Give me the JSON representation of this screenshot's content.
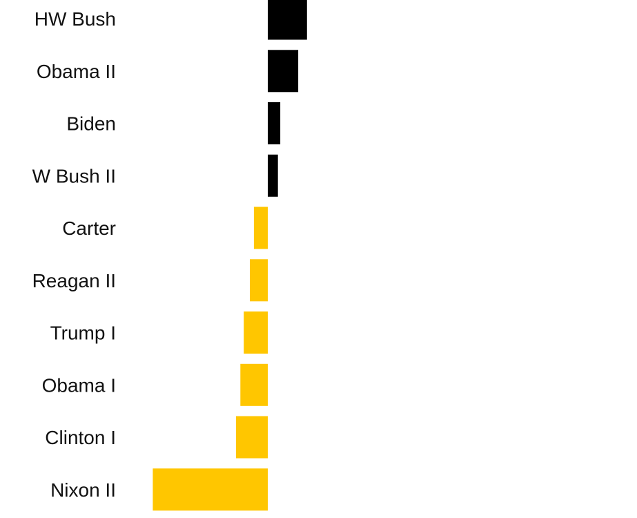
{
  "chart_data": {
    "type": "bar",
    "orientation": "horizontal",
    "title": "",
    "xlabel": "",
    "ylabel": "",
    "categories": [
      "HW Bush",
      "Obama II",
      "Biden",
      "W Bush II",
      "Carter",
      "Reagan II",
      "Trump I",
      "Obama I",
      "Clinton I",
      "Nixon II"
    ],
    "values": [
      11.6,
      9.0,
      3.7,
      3.0,
      -4.1,
      -5.3,
      -7.1,
      -8.1,
      -9.4,
      -34.0
    ],
    "xlim": [
      -34,
      11.6
    ],
    "grid": false,
    "legend": "none",
    "colors": {
      "positive": "#000000",
      "negative": "#FFC600",
      "label": "#111111"
    }
  }
}
